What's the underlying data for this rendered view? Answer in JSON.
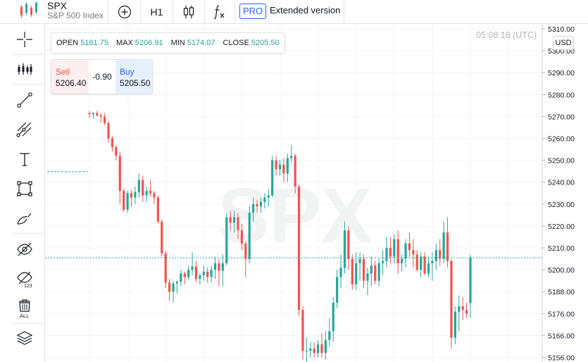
{
  "header": {
    "symbol": "SPX",
    "symbol_desc": "S&P 500 Index",
    "interval": "H1",
    "pro_badge": "PRO",
    "extended_label": "Extended version"
  },
  "ohlc": {
    "open_label": "OPEN",
    "open": "5181.75",
    "high_label": "MAX",
    "high": "5206.91",
    "low_label": "MIN",
    "low": "5174.07",
    "close_label": "CLOSE",
    "close": "5205.50"
  },
  "trade": {
    "sell_label": "Sell",
    "sell_price": "5206.40",
    "spread": "-0.90",
    "buy_label": "Buy",
    "buy_price": "5205.50"
  },
  "clock": "05:08:18 (UTC)",
  "currency": "USD",
  "watermark": "SPX",
  "colors": {
    "up": "#26a69a",
    "down": "#ef5350",
    "grid": "#f0f3fa",
    "price_line": "#26a69a"
  },
  "toolbar": {
    "tools": [
      "crosshair-icon",
      "indicators-icon",
      "trend-line-icon",
      "pitchfork-icon",
      "text-icon",
      "rectangle-icon",
      "brush-icon",
      "hide-drawings-icon",
      "hide-values-icon",
      "delete-all-icon",
      "layers-icon",
      "chevron-more-icon"
    ],
    "delete_all_label": "ALL",
    "hide_values_label": "123",
    "text_tool_label": "T"
  },
  "chart_data": {
    "type": "candlestick",
    "symbol": "SPX",
    "interval": "H1",
    "y_axis": {
      "ticks": [
        "5310.00",
        "5300.00",
        "5290.00",
        "5280.00",
        "5270.00",
        "5260.00",
        "5250.00",
        "5240.00",
        "5230.00",
        "5220.00",
        "5210.00",
        "5200.00",
        "5188.00",
        "5176.00",
        "5166.00",
        "5156.00"
      ],
      "range": [
        5154,
        5312
      ],
      "side": "right"
    },
    "current_price": 5205.5,
    "reference_price": 5244.8,
    "grid": true,
    "candles": [
      [
        5271.5,
        5272.5,
        5269.5,
        5271.0
      ],
      [
        5271.0,
        5272.0,
        5269.0,
        5271.5
      ],
      [
        5271.5,
        5272.5,
        5270.0,
        5270.5
      ],
      [
        5270.5,
        5271.5,
        5267.0,
        5270.0
      ],
      [
        5270.0,
        5271.5,
        5266.0,
        5267.0
      ],
      [
        5267.0,
        5268.0,
        5258.0,
        5260.0
      ],
      [
        5260.0,
        5261.0,
        5254.0,
        5256.0
      ],
      [
        5256.0,
        5257.0,
        5250.0,
        5252.0
      ],
      [
        5252.0,
        5254.0,
        5230.0,
        5236.0
      ],
      [
        5236.0,
        5237.0,
        5226.5,
        5227.5
      ],
      [
        5227.5,
        5236.0,
        5226.0,
        5235.0
      ],
      [
        5235.0,
        5236.5,
        5229.0,
        5233.0
      ],
      [
        5233.0,
        5238.0,
        5230.0,
        5235.5
      ],
      [
        5235.5,
        5244.0,
        5233.0,
        5241.0
      ],
      [
        5241.0,
        5243.0,
        5231.0,
        5234.0
      ],
      [
        5234.0,
        5238.0,
        5231.0,
        5236.0
      ],
      [
        5236.0,
        5241.0,
        5233.5,
        5235.0
      ],
      [
        5235.0,
        5236.0,
        5230.0,
        5233.0
      ],
      [
        5233.0,
        5234.0,
        5221.0,
        5222.0
      ],
      [
        5222.0,
        5223.0,
        5206.0,
        5207.5
      ],
      [
        5207.5,
        5208.5,
        5190.0,
        5193.0
      ],
      [
        5193.0,
        5195.0,
        5183.0,
        5188.0
      ],
      [
        5188.0,
        5194.0,
        5182.0,
        5192.5
      ],
      [
        5192.5,
        5194.0,
        5187.0,
        5193.5
      ],
      [
        5193.5,
        5200.0,
        5191.0,
        5198.0
      ],
      [
        5198.0,
        5199.0,
        5192.0,
        5196.0
      ],
      [
        5196.0,
        5202.0,
        5194.5,
        5200.0
      ],
      [
        5200.0,
        5208.0,
        5197.0,
        5201.5
      ],
      [
        5201.5,
        5204.0,
        5193.0,
        5195.0
      ],
      [
        5195.0,
        5198.0,
        5192.0,
        5197.0
      ],
      [
        5197.0,
        5202.0,
        5194.0,
        5199.0
      ],
      [
        5199.0,
        5201.0,
        5193.0,
        5196.0
      ],
      [
        5196.0,
        5202.0,
        5193.0,
        5200.0
      ],
      [
        5200.0,
        5206.0,
        5195.0,
        5203.0
      ],
      [
        5203.0,
        5205.0,
        5191.0,
        5199.5
      ],
      [
        5199.5,
        5207.0,
        5191.0,
        5203.0
      ],
      [
        5203.0,
        5226.0,
        5202.0,
        5224.0
      ],
      [
        5224.0,
        5227.0,
        5218.0,
        5221.5
      ],
      [
        5221.5,
        5227.0,
        5217.0,
        5224.0
      ],
      [
        5224.0,
        5226.0,
        5214.0,
        5218.0
      ],
      [
        5218.0,
        5221.0,
        5209.0,
        5212.0
      ],
      [
        5212.0,
        5213.0,
        5196.0,
        5205.0
      ],
      [
        5205.0,
        5229.0,
        5203.0,
        5226.0
      ],
      [
        5226.0,
        5233.0,
        5222.0,
        5230.0
      ],
      [
        5230.0,
        5232.0,
        5226.0,
        5229.0
      ],
      [
        5229.0,
        5233.0,
        5226.0,
        5231.0
      ],
      [
        5231.0,
        5235.0,
        5228.0,
        5233.0
      ],
      [
        5233.0,
        5237.0,
        5229.0,
        5234.0
      ],
      [
        5234.0,
        5252.0,
        5233.0,
        5250.0
      ],
      [
        5250.0,
        5252.0,
        5243.0,
        5246.0
      ],
      [
        5246.0,
        5250.0,
        5243.0,
        5248.0
      ],
      [
        5248.0,
        5251.0,
        5240.0,
        5244.0
      ],
      [
        5244.0,
        5253.0,
        5240.0,
        5251.0
      ],
      [
        5251.0,
        5257.0,
        5249.0,
        5252.0
      ],
      [
        5252.0,
        5253.0,
        5235.0,
        5238.0
      ],
      [
        5238.0,
        5239.0,
        5175.0,
        5178.0
      ],
      [
        5178.0,
        5180.0,
        5155.0,
        5159.0
      ],
      [
        5159.0,
        5165.0,
        5151.0,
        5159.0
      ],
      [
        5159.0,
        5163.0,
        5156.0,
        5160.0
      ],
      [
        5160.0,
        5163.0,
        5156.0,
        5158.0
      ],
      [
        5158.0,
        5164.0,
        5156.0,
        5162.0
      ],
      [
        5162.0,
        5167.0,
        5156.0,
        5158.0
      ],
      [
        5158.0,
        5168.0,
        5155.0,
        5164.0
      ],
      [
        5164.0,
        5174.0,
        5161.0,
        5168.0
      ],
      [
        5168.0,
        5185.0,
        5163.0,
        5182.0
      ],
      [
        5182.0,
        5200.0,
        5179.0,
        5196.0
      ],
      [
        5196.0,
        5207.0,
        5190.0,
        5201.0
      ],
      [
        5201.0,
        5222.0,
        5198.0,
        5218.0
      ],
      [
        5218.0,
        5220.0,
        5200.0,
        5205.0
      ],
      [
        5205.0,
        5207.0,
        5189.0,
        5192.0
      ],
      [
        5192.0,
        5208.0,
        5189.0,
        5203.0
      ],
      [
        5203.0,
        5208.0,
        5194.0,
        5205.0
      ],
      [
        5205.0,
        5207.0,
        5190.0,
        5194.0
      ],
      [
        5194.0,
        5201.0,
        5186.0,
        5198.0
      ],
      [
        5198.0,
        5206.0,
        5191.0,
        5202.0
      ],
      [
        5202.0,
        5204.0,
        5192.0,
        5194.0
      ],
      [
        5194.0,
        5205.0,
        5191.0,
        5203.0
      ],
      [
        5203.0,
        5209.0,
        5197.0,
        5204.0
      ],
      [
        5204.0,
        5215.0,
        5201.0,
        5210.0
      ],
      [
        5210.0,
        5215.0,
        5203.0,
        5206.0
      ],
      [
        5206.0,
        5216.0,
        5203.0,
        5214.0
      ],
      [
        5214.0,
        5218.0,
        5198.0,
        5203.0
      ],
      [
        5203.0,
        5207.0,
        5199.0,
        5205.0
      ],
      [
        5205.0,
        5214.0,
        5201.0,
        5212.0
      ],
      [
        5212.0,
        5217.0,
        5206.0,
        5209.0
      ],
      [
        5209.0,
        5214.0,
        5201.0,
        5207.0
      ],
      [
        5207.0,
        5209.0,
        5199.0,
        5200.0
      ],
      [
        5200.0,
        5208.0,
        5196.0,
        5206.0
      ],
      [
        5206.0,
        5208.0,
        5197.0,
        5198.0
      ],
      [
        5198.0,
        5206.0,
        5196.0,
        5203.0
      ],
      [
        5203.0,
        5208.0,
        5194.0,
        5204.0
      ],
      [
        5204.0,
        5212.0,
        5200.0,
        5209.0
      ],
      [
        5209.0,
        5214.0,
        5202.0,
        5205.0
      ],
      [
        5205.0,
        5222.0,
        5203.0,
        5217.0
      ],
      [
        5217.0,
        5224.0,
        5201.0,
        5204.0
      ],
      [
        5204.0,
        5205.0,
        5160.0,
        5165.0
      ],
      [
        5165.0,
        5180.0,
        5162.0,
        5177.0
      ],
      [
        5177.0,
        5186.0,
        5168.0,
        5180.0
      ],
      [
        5180.0,
        5185.0,
        5173.0,
        5178.0
      ],
      [
        5178.0,
        5182.0,
        5174.0,
        5176.0
      ],
      [
        5181.75,
        5206.91,
        5174.07,
        5205.5
      ]
    ]
  }
}
